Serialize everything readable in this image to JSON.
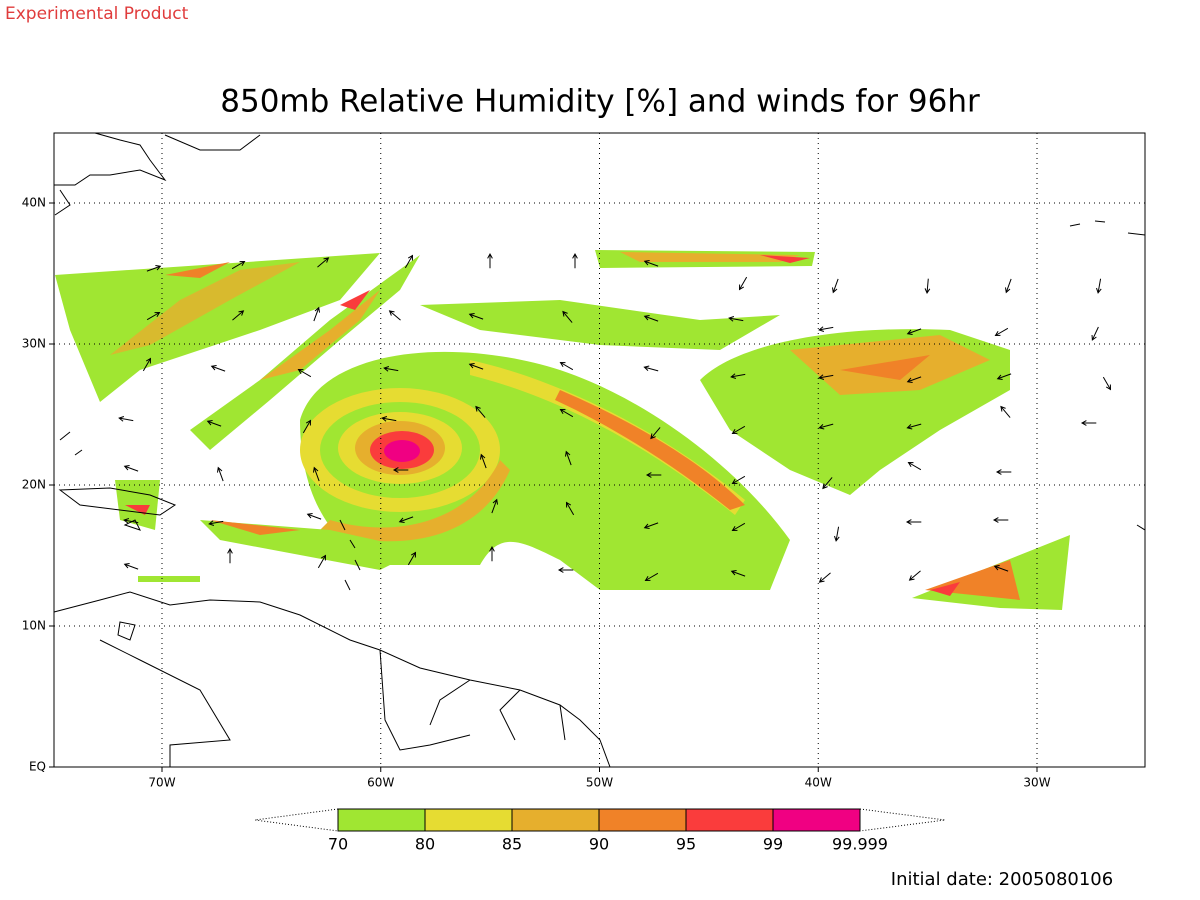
{
  "header": {
    "note": "Experimental Product",
    "title": "850mb Relative Humidity [%] and winds for 96hr"
  },
  "map": {
    "x_labels": [
      "70W",
      "60W",
      "50W",
      "40W",
      "30W"
    ],
    "y_labels": [
      "40N",
      "30N",
      "20N",
      "10N",
      "EQ"
    ]
  },
  "colorbar": {
    "labels": [
      "70",
      "80",
      "85",
      "90",
      "95",
      "99",
      "99.999"
    ],
    "colors": [
      "#a0e632",
      "#e6dc32",
      "#e6af2d",
      "#f08228",
      "#fa3c3c",
      "#f00082"
    ]
  },
  "footer": {
    "initial_date": "Initial date: 2005080106"
  }
}
